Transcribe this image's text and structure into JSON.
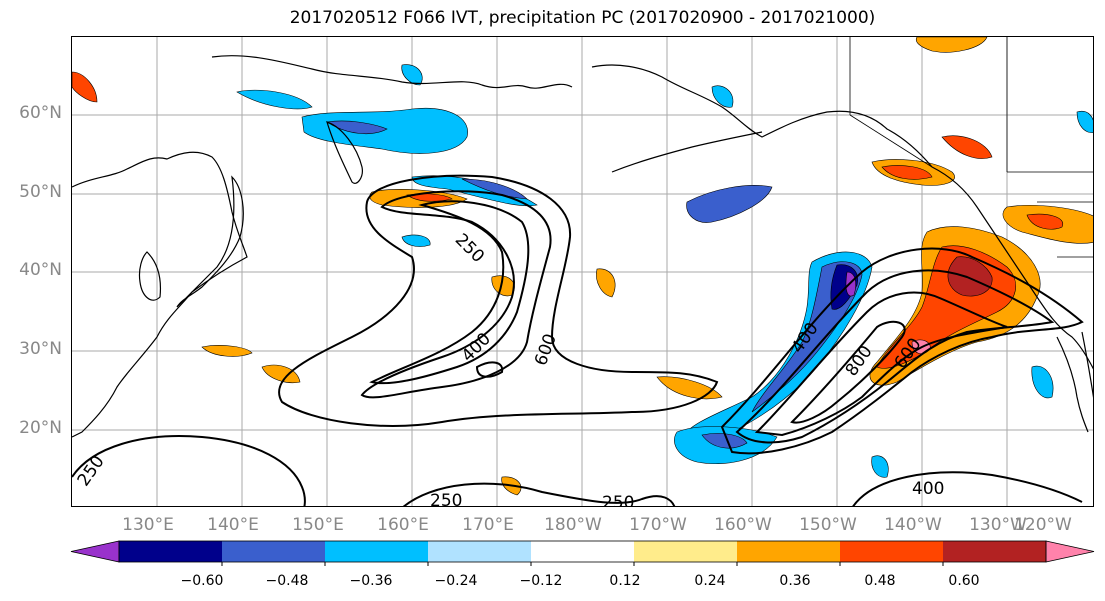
{
  "title": "2017020512 F066 IVT, precipitation PC (2017020900 - 2017021000)",
  "lat_labels": [
    "60°N",
    "50°N",
    "40°N",
    "30°N",
    "20°N"
  ],
  "lon_labels": [
    "130°E",
    "140°E",
    "150°E",
    "160°E",
    "170°E",
    "180°W",
    "170°W",
    "160°W",
    "150°W",
    "140°W",
    "130°W",
    "120°W"
  ],
  "ivt_contour_labels": [
    "250",
    "400",
    "600",
    "400",
    "800",
    "600",
    "250",
    "250",
    "250",
    "400"
  ],
  "colorbar": {
    "ticks": [
      "−0.60",
      "−0.48",
      "−0.36",
      "−0.24",
      "−0.12",
      "0.12",
      "0.24",
      "0.36",
      "0.48",
      "0.60"
    ],
    "colors": [
      "#9932cc",
      "#00008b",
      "#3a5fcd",
      "#00bfff",
      "#b0e2ff",
      "#ffffff",
      "#ffec8b",
      "#ffa500",
      "#ff4500",
      "#b22222",
      "#ff82ab"
    ]
  }
}
